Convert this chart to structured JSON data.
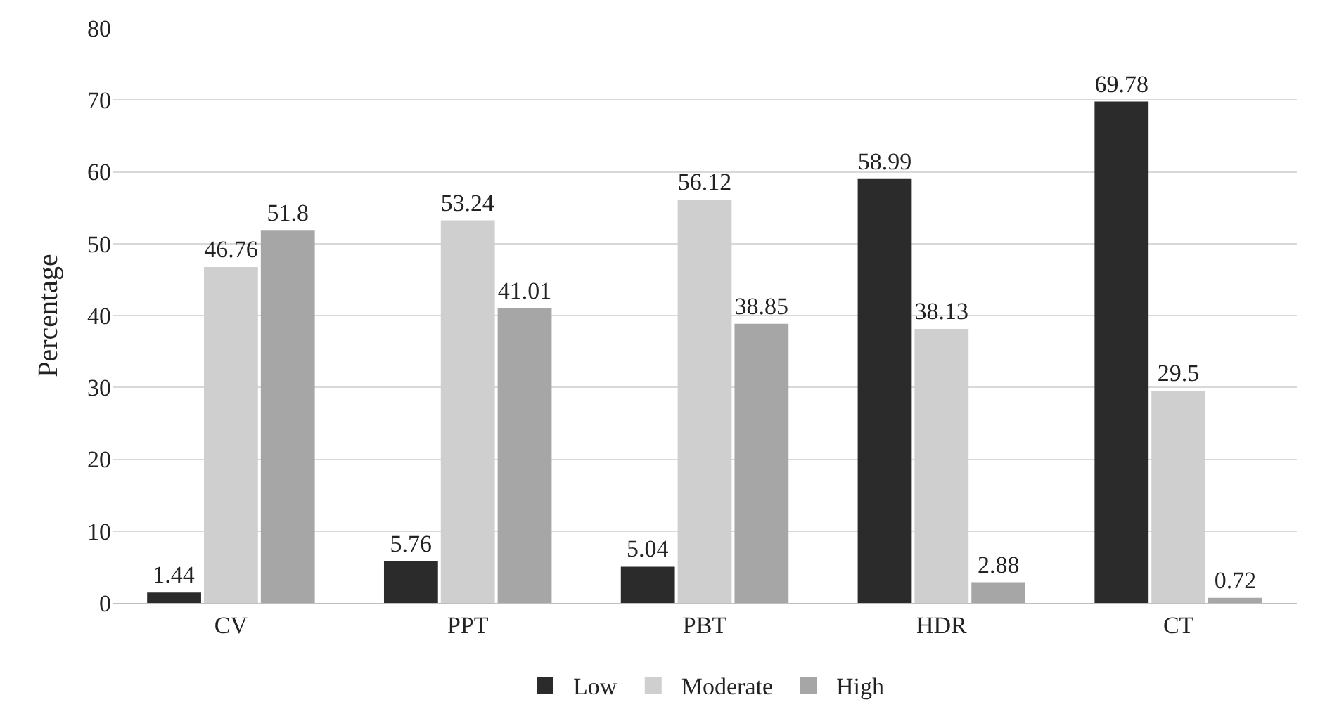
{
  "chart_data": {
    "type": "bar",
    "ylabel": "Percentage",
    "categories": [
      "CV",
      "PPT",
      "PBT",
      "HDR",
      "CT"
    ],
    "series": [
      {
        "name": "Low",
        "color": "#2b2b2b",
        "values": [
          1.44,
          5.76,
          5.04,
          58.99,
          69.78
        ]
      },
      {
        "name": "Moderate",
        "color": "#cfcfcf",
        "values": [
          46.76,
          53.24,
          56.12,
          38.13,
          29.5
        ]
      },
      {
        "name": "High",
        "color": "#a6a6a6",
        "values": [
          51.8,
          41.01,
          38.85,
          2.88,
          0.72
        ]
      }
    ],
    "ylim": [
      0,
      80
    ],
    "yticks": [
      0,
      10,
      20,
      30,
      40,
      50,
      60,
      70,
      80
    ],
    "grid": "y",
    "legend": "bottom",
    "data_labels": true
  }
}
